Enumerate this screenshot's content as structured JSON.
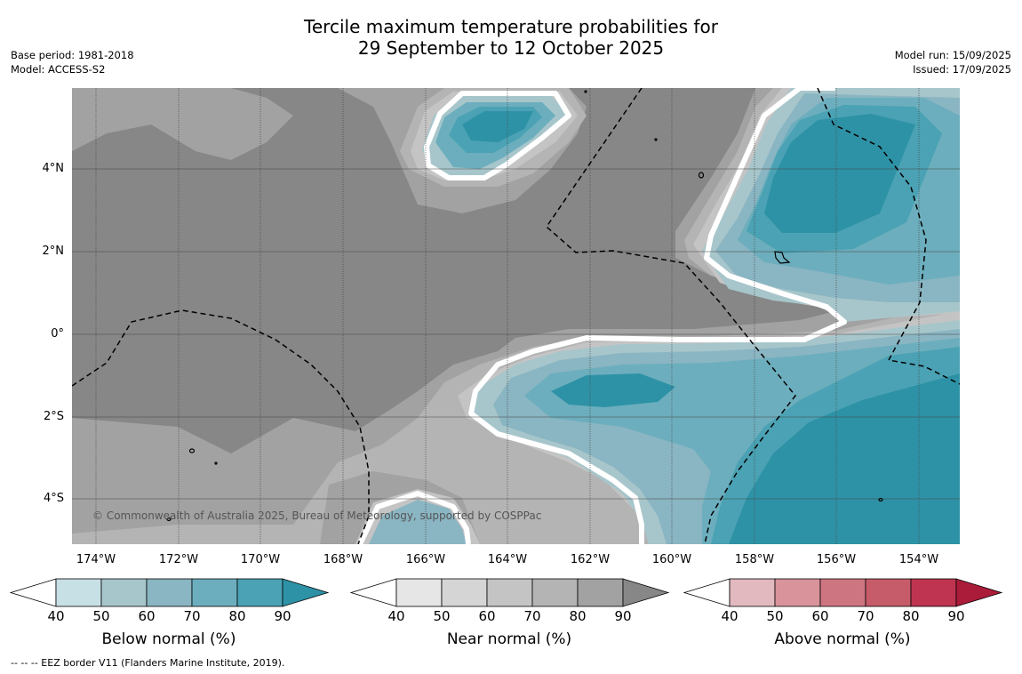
{
  "title": {
    "line1": "Tercile maximum temperature probabilities for",
    "line2": "29 September to 12 October 2025"
  },
  "meta": {
    "base_period": "Base period: 1981-2018",
    "model": "Model: ACCESS-S2",
    "model_run": "Model run: 15/09/2025",
    "issued": "Issued: 17/09/2025"
  },
  "map": {
    "lon_labels": [
      "174°W",
      "172°W",
      "170°W",
      "168°W",
      "166°W",
      "164°W",
      "162°W",
      "160°W",
      "158°W",
      "156°W",
      "154°W"
    ],
    "lat_labels": [
      "4°N",
      "2°N",
      "0°",
      "2°S",
      "4°S"
    ],
    "copyright": "© Commonwealth of Australia 2025, Bureau of Meteorology, supported by COSPPac",
    "colors": {
      "near": [
        "#e6e6e6",
        "#d5d5d5",
        "#c4c4c4",
        "#b4b4b4",
        "#a2a2a2",
        "#878787"
      ],
      "below": [
        "#c7e0e6",
        "#a7c6cb",
        "#8ab5c2",
        "#6caebd",
        "#4aa2b4",
        "#2e92a6"
      ],
      "above": [
        "#e2b9bf",
        "#d8939b",
        "#cd7681",
        "#c65c69",
        "#bf3450",
        "#ab1b3a"
      ]
    }
  },
  "colorbars": [
    {
      "label": "Below normal (%)",
      "ticks": [
        "40",
        "50",
        "60",
        "70",
        "80",
        "90"
      ]
    },
    {
      "label": "Near normal (%)",
      "ticks": [
        "40",
        "50",
        "60",
        "70",
        "80",
        "90"
      ]
    },
    {
      "label": "Above normal (%)",
      "ticks": [
        "40",
        "50",
        "60",
        "70",
        "80",
        "90"
      ]
    }
  ],
  "footer": "--  --  -- EEZ border V11 (Flanders Marine Institute, 2019)."
}
